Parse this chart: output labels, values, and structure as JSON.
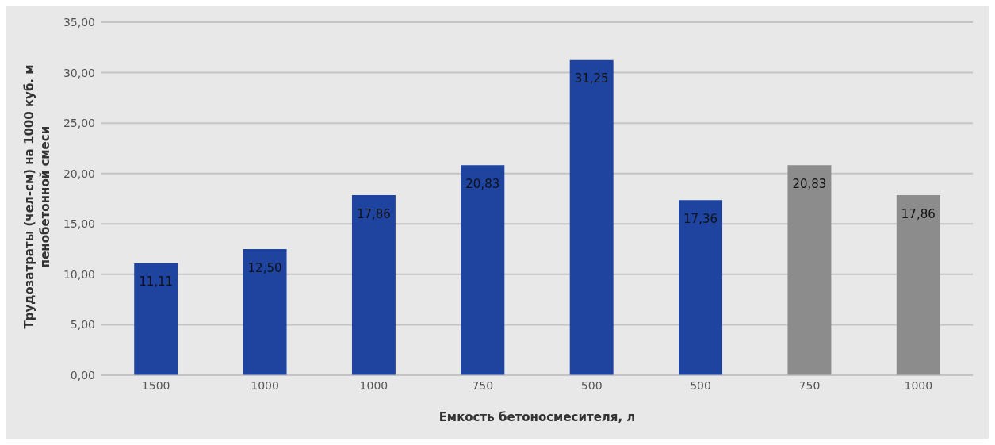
{
  "chart_data": {
    "type": "bar",
    "xlabel": "Емкость бетоносмесителя, л",
    "ylabel": "Трудозатраты (чел-см) на 1000 куб. м пенобетонной смеси",
    "categories": [
      "1500",
      "1000",
      "1000",
      "750",
      "500",
      "500",
      "750",
      "1000"
    ],
    "values": [
      11.11,
      12.5,
      17.86,
      20.83,
      31.25,
      17.36,
      20.83,
      17.86
    ],
    "colors": [
      "#1f44a0",
      "#1f44a0",
      "#1f44a0",
      "#1f44a0",
      "#1f44a0",
      "#1f44a0",
      "#8c8c8c",
      "#8c8c8c"
    ],
    "value_labels": [
      "11,11",
      "12,50",
      "17,86",
      "20,83",
      "31,25",
      "17,36",
      "20,83",
      "17,86"
    ],
    "ylim": [
      0,
      35
    ],
    "yticks": [
      {
        "value": 0,
        "label": "0,00"
      },
      {
        "value": 5,
        "label": "5,00"
      },
      {
        "value": 10,
        "label": "10,00"
      },
      {
        "value": 15,
        "label": "15,00"
      },
      {
        "value": 20,
        "label": "20,00"
      },
      {
        "value": 25,
        "label": "25,00"
      },
      {
        "value": 30,
        "label": "30,00"
      },
      {
        "value": 35,
        "label": "35,00"
      }
    ],
    "grid": "y"
  }
}
